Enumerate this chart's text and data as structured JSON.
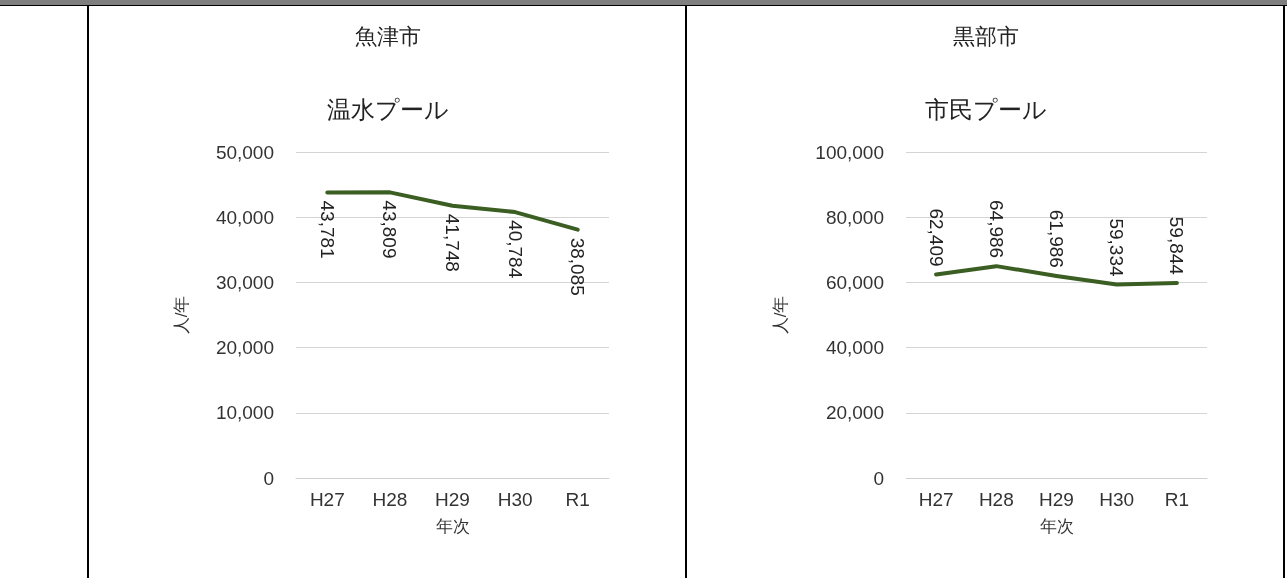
{
  "chart_data": [
    {
      "type": "line",
      "title": "魚津市",
      "subtitle": "温水プール",
      "xlabel": "年次",
      "ylabel": "人/年",
      "categories": [
        "H27",
        "H28",
        "H29",
        "H30",
        "R1"
      ],
      "series": [
        {
          "color": "#3b5e23",
          "values": [
            43781,
            43809,
            41748,
            40784,
            38085
          ],
          "value_labels": [
            "43,781",
            "43,809",
            "41,748",
            "40,784",
            "38,085"
          ]
        }
      ],
      "ylim": [
        0,
        50000
      ],
      "yticks": [
        {
          "value": 0,
          "label": "0"
        },
        {
          "value": 10000,
          "label": "10,000"
        },
        {
          "value": 20000,
          "label": "20,000"
        },
        {
          "value": 30000,
          "label": "30,000"
        },
        {
          "value": 40000,
          "label": "40,000"
        },
        {
          "value": 50000,
          "label": "50,000"
        }
      ],
      "grid": "y",
      "marker": "none",
      "line_style": "solid"
    },
    {
      "type": "line",
      "title": "黒部市",
      "subtitle": "市民プール",
      "xlabel": "年次",
      "ylabel": "人/年",
      "categories": [
        "H27",
        "H28",
        "H29",
        "H30",
        "R1"
      ],
      "series": [
        {
          "color": "#3b5e23",
          "values": [
            62409,
            64986,
            61986,
            59334,
            59844
          ],
          "value_labels": [
            "62,409",
            "64,986",
            "61,986",
            "59,334",
            "59,844"
          ]
        }
      ],
      "ylim": [
        0,
        100000
      ],
      "yticks": [
        {
          "value": 0,
          "label": "0"
        },
        {
          "value": 20000,
          "label": "20,000"
        },
        {
          "value": 40000,
          "label": "40,000"
        },
        {
          "value": 60000,
          "label": "60,000"
        },
        {
          "value": 80000,
          "label": "80,000"
        },
        {
          "value": 100000,
          "label": "100,000"
        }
      ],
      "grid": "y",
      "marker": "none",
      "line_style": "solid"
    }
  ]
}
